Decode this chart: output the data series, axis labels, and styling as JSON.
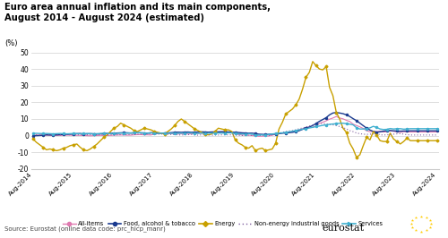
{
  "title": "Euro area annual inflation and its main components,\nAugust 2014 - August 2024 (estimated)",
  "ylabel": "(%)",
  "source": "Source: Eurostat (online data code: prc_hicp_manr)",
  "ylim": [
    -20,
    50
  ],
  "yticks": [
    -20,
    -10,
    0,
    10,
    20,
    30,
    40,
    50
  ],
  "x_labels": [
    "Aug-2014",
    "Aug-2015",
    "Aug-2016",
    "Aug-2017",
    "Aug-2018",
    "Aug-2019",
    "Aug-2020",
    "Aug-2021",
    "Aug-2022",
    "Aug-2023",
    "Aug-2024"
  ],
  "all_items": [
    0.4,
    0.3,
    0.3,
    0.4,
    0.3,
    0.2,
    0.1,
    0.1,
    0.2,
    0.2,
    0.3,
    0.3,
    0.2,
    0.2,
    0.2,
    0.1,
    0.0,
    -0.1,
    0.0,
    0.1,
    0.2,
    0.1,
    0.1,
    0.2,
    0.3,
    0.4,
    0.4,
    0.4,
    0.3,
    0.3,
    0.5,
    0.6,
    0.6,
    0.5,
    0.5,
    0.4,
    1.1,
    1.2,
    1.3,
    1.4,
    1.3,
    1.2,
    1.0,
    1.0,
    1.1,
    1.0,
    1.0,
    1.1,
    1.2,
    1.3,
    1.5,
    1.6,
    1.7,
    2.0,
    2.2,
    2.1,
    2.1,
    2.1,
    2.3,
    1.7,
    1.4,
    0.7,
    0.4,
    0.3,
    0.3,
    0.1,
    -0.2,
    -0.4,
    -0.3,
    -0.3,
    -0.2,
    0.3,
    0.9,
    1.3,
    1.6,
    1.9,
    2.0,
    2.3,
    3.0,
    3.4,
    4.1,
    4.9,
    5.1,
    5.0,
    5.9,
    7.4,
    8.1,
    8.9,
    9.9,
    10.6,
    11.5,
    10.6,
    10.1,
    9.2,
    8.5,
    6.9,
    6.1,
    5.3,
    4.3,
    2.9,
    2.4,
    2.6,
    2.4,
    2.6,
    2.2,
    2.3,
    2.9,
    2.6,
    2.2,
    2.0,
    2.4,
    2.2,
    2.2
  ],
  "food": [
    0.0,
    0.0,
    0.1,
    0.3,
    0.5,
    0.4,
    0.4,
    0.5,
    0.6,
    0.7,
    0.8,
    0.9,
    1.1,
    1.2,
    1.3,
    1.0,
    1.1,
    1.2,
    1.1,
    1.0,
    1.1,
    1.2,
    1.3,
    1.4,
    1.5,
    1.6,
    1.7,
    1.8,
    1.7,
    1.6,
    1.7,
    1.8,
    1.7,
    1.6,
    1.5,
    1.8,
    1.7,
    1.6,
    1.5,
    1.6,
    1.7,
    1.8,
    2.0,
    2.1,
    2.0,
    2.1,
    2.2,
    2.0,
    2.1,
    2.2,
    2.3,
    2.2,
    2.1,
    2.2,
    2.3,
    2.3,
    2.4,
    2.3,
    2.2,
    2.1,
    2.0,
    1.9,
    1.7,
    1.6,
    1.5,
    1.5,
    1.3,
    0.9,
    0.8,
    0.7,
    0.8,
    0.9,
    1.1,
    1.2,
    1.5,
    1.6,
    1.8,
    2.0,
    2.5,
    3.0,
    3.8,
    4.5,
    5.2,
    6.1,
    7.3,
    8.6,
    9.7,
    10.8,
    12.5,
    13.6,
    13.9,
    13.6,
    13.2,
    12.5,
    11.5,
    10.2,
    9.0,
    7.5,
    6.0,
    4.5,
    3.4,
    2.5,
    2.1,
    2.3,
    2.7,
    3.0,
    3.1,
    2.9,
    2.8,
    2.7,
    2.8,
    2.8,
    2.9
  ],
  "energy": [
    -2.0,
    -4.0,
    -5.5,
    -7.0,
    -8.5,
    -8.0,
    -8.5,
    -9.0,
    -8.5,
    -7.5,
    -7.0,
    -6.0,
    -5.5,
    -5.0,
    -7.0,
    -8.5,
    -9.0,
    -8.0,
    -6.5,
    -5.0,
    -3.0,
    -1.0,
    0.5,
    2.5,
    4.5,
    5.5,
    7.5,
    6.5,
    5.5,
    4.5,
    3.0,
    2.5,
    3.5,
    4.5,
    4.0,
    3.5,
    2.5,
    2.0,
    1.5,
    1.0,
    2.5,
    4.0,
    6.0,
    8.5,
    10.0,
    8.5,
    7.0,
    5.5,
    4.0,
    3.0,
    2.0,
    1.0,
    0.5,
    1.0,
    2.5,
    4.5,
    4.0,
    3.5,
    3.5,
    2.5,
    -2.5,
    -4.5,
    -5.5,
    -7.0,
    -7.5,
    -6.0,
    -9.0,
    -8.0,
    -7.5,
    -9.0,
    -8.5,
    -8.0,
    -4.5,
    4.0,
    8.0,
    13.0,
    14.5,
    16.0,
    18.5,
    22.0,
    28.0,
    35.0,
    38.0,
    44.5,
    42.0,
    40.0,
    39.5,
    41.5,
    29.0,
    24.0,
    14.0,
    10.0,
    4.5,
    2.0,
    -4.5,
    -8.0,
    -13.0,
    -11.5,
    -6.0,
    -1.0,
    -2.5,
    2.5,
    0.3,
    -3.0,
    -3.5,
    -3.5,
    1.5,
    -2.0,
    -3.5,
    -5.0,
    -3.5,
    -1.5,
    -3.0
  ],
  "neig": [
    0.5,
    0.5,
    0.4,
    0.5,
    0.5,
    0.4,
    0.5,
    0.4,
    0.4,
    0.5,
    0.6,
    0.5,
    0.4,
    0.5,
    0.5,
    0.4,
    0.5,
    0.5,
    0.4,
    0.5,
    0.5,
    0.5,
    0.4,
    0.5,
    0.4,
    0.5,
    0.6,
    0.5,
    0.6,
    0.7,
    0.8,
    0.9,
    1.0,
    0.9,
    1.0,
    1.1,
    0.8,
    0.9,
    1.0,
    0.9,
    0.8,
    0.7,
    0.6,
    0.5,
    0.4,
    0.5,
    0.6,
    0.7,
    0.4,
    0.3,
    0.5,
    0.5,
    0.5,
    0.3,
    0.4,
    0.4,
    0.5,
    0.5,
    0.5,
    0.5,
    0.3,
    0.2,
    0.1,
    0.2,
    0.3,
    0.2,
    0.3,
    0.2,
    0.1,
    0.0,
    0.1,
    0.5,
    1.2,
    1.5,
    2.0,
    2.5,
    2.8,
    3.0,
    3.5,
    4.2,
    4.6,
    5.2,
    5.8,
    6.4,
    6.8,
    7.1,
    7.4,
    7.0,
    6.8,
    6.5,
    6.0,
    5.5,
    4.8,
    4.1,
    3.0,
    2.4,
    1.6,
    1.2,
    0.9,
    0.8,
    0.9,
    1.0,
    1.5,
    0.5,
    0.4,
    0.5,
    0.6,
    0.9,
    1.1,
    1.3,
    0.9,
    0.6,
    0.4
  ],
  "services": [
    1.3,
    1.4,
    1.3,
    1.2,
    1.3,
    1.2,
    1.1,
    1.2,
    1.3,
    1.2,
    1.1,
    1.2,
    1.3,
    1.2,
    1.1,
    1.2,
    1.3,
    1.2,
    1.1,
    1.2,
    1.3,
    1.4,
    1.3,
    1.2,
    1.3,
    1.4,
    1.5,
    1.6,
    1.5,
    1.6,
    1.7,
    1.8,
    1.7,
    1.6,
    1.5,
    1.6,
    1.5,
    1.4,
    1.5,
    1.6,
    1.5,
    1.4,
    1.5,
    1.4,
    1.5,
    1.6,
    1.7,
    1.6,
    1.5,
    1.4,
    1.5,
    1.6,
    1.5,
    1.6,
    1.5,
    1.6,
    1.5,
    1.6,
    1.7,
    1.6,
    1.2,
    1.1,
    1.0,
    1.1,
    1.2,
    0.9,
    0.4,
    0.3,
    0.5,
    0.6,
    0.7,
    1.0,
    1.3,
    1.5,
    1.7,
    2.0,
    2.3,
    2.7,
    3.1,
    3.5,
    3.9,
    4.2,
    4.6,
    5.0,
    5.5,
    5.8,
    6.2,
    6.5,
    6.8,
    7.0,
    7.2,
    7.4,
    7.5,
    7.2,
    6.9,
    6.5,
    4.8,
    4.0,
    4.0,
    4.3,
    4.7,
    5.6,
    4.9,
    4.0,
    3.7,
    3.8,
    4.3,
    4.0,
    4.2,
    4.2,
    3.9,
    4.0,
    4.2
  ],
  "colors": {
    "all_items": "#e07ab0",
    "food": "#1a3a8f",
    "energy": "#c8a000",
    "neig": "#8060a0",
    "services": "#40b0d0"
  },
  "legend_labels": [
    "All-items",
    "Food, alcohol & tobacco",
    "Energy",
    "Non-energy industrial goods",
    "Services"
  ]
}
